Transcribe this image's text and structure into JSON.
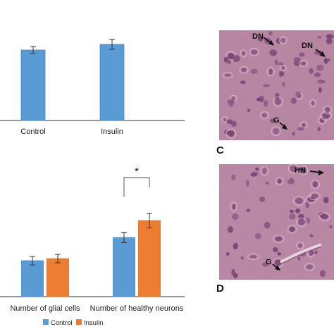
{
  "chart_data": [
    {
      "type": "bar",
      "categories": [
        "Control",
        "Insulin"
      ],
      "series": [
        {
          "values": [
            100,
            108
          ],
          "errors": [
            5,
            7
          ],
          "color": "#5b9bd5"
        }
      ],
      "title": "",
      "xlabel": "",
      "ylabel": "",
      "ylim": [
        0,
        150
      ],
      "grid": false
    },
    {
      "type": "bar",
      "categories": [
        "Number of glial cells",
        "Number of healthy neurons"
      ],
      "series": [
        {
          "name": "Control",
          "values": [
            34,
            56
          ],
          "errors": [
            4,
            5
          ],
          "color": "#5b9bd5"
        },
        {
          "name": "Insulin",
          "values": [
            36,
            72
          ],
          "errors": [
            4,
            7
          ],
          "color": "#ed7d31"
        }
      ],
      "title": "",
      "xlabel": "",
      "ylabel": "",
      "ylim": [
        0,
        100
      ],
      "grid": false,
      "legend": "bottom-center",
      "annotations": [
        {
          "text": "*",
          "between": [
            "Control",
            "Insulin"
          ],
          "category": "Number of healthy neurons"
        }
      ]
    }
  ],
  "micrographs": [
    {
      "panel": "C",
      "labels": [
        "DN",
        "DN",
        "G"
      ],
      "base_color": "#b8879e"
    },
    {
      "panel": "D",
      "labels": [
        "HN",
        "G"
      ],
      "base_color": "#ba8aa1"
    }
  ]
}
